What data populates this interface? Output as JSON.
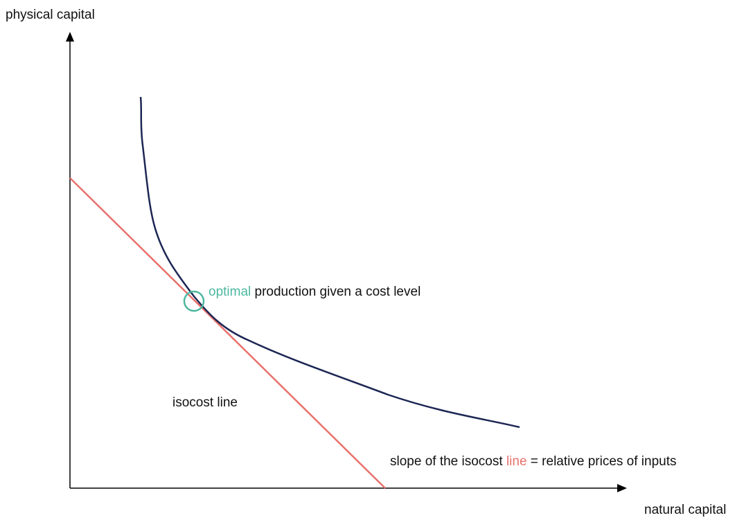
{
  "axes": {
    "y_label": "physical capital",
    "x_label": "natural capital"
  },
  "annotations": {
    "optimal": {
      "highlight": "optimal",
      "rest": "production given a cost level"
    },
    "isocost": "isocost line",
    "slope": {
      "before": "slope of the isocost",
      "highlight": "line",
      "after": "= relative prices of inputs"
    }
  }
}
